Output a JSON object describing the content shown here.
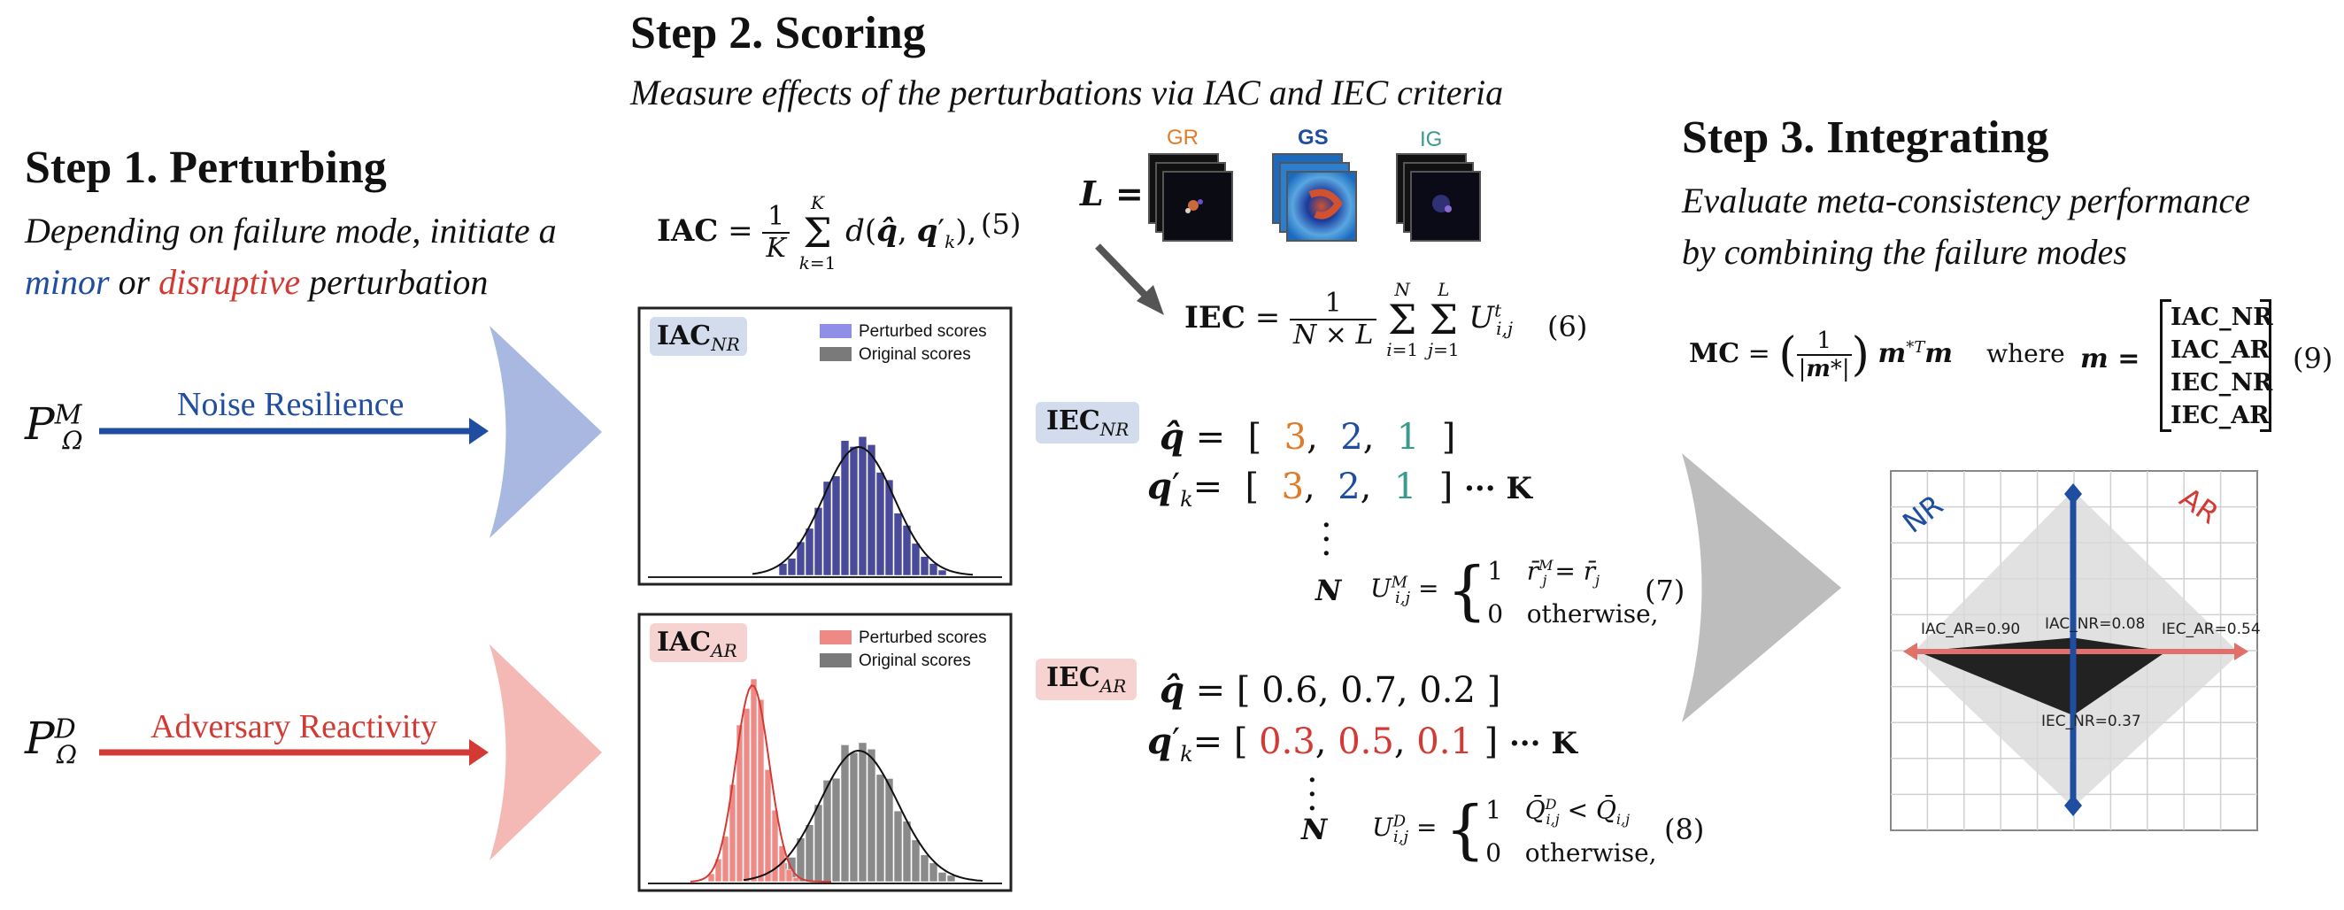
{
  "step1": {
    "title": "Step 1. Perturbing",
    "subtitle_line1": "Depending on failure mode, initiate a",
    "subtitle_minor": "minor",
    "subtitle_or": " or ",
    "subtitle_disruptive": "disruptive",
    "subtitle_end": " perturbation",
    "p_minor": "P",
    "p_minor_sup": "M",
    "p_sub": "Ω",
    "p_disruptive": "P",
    "p_disruptive_sup": "D",
    "noise_label": "Noise Resilience",
    "adversary_label": "Adversary Reactivity"
  },
  "step2": {
    "title": "Step 2. Scoring",
    "subtitle": "Measure effects of the perturbations via IAC and IEC criteria",
    "iac_eq": "IAC = (1/K) Σ_{k=1}^{K} d(q̂, q′_k),",
    "iac_eq_num": "(5)",
    "iec_eq": "IEC = 1/(N × L) Σ_{i=1}^{N} Σ_{j=1}^{L} U^t_{i,j}",
    "iec_eq_num": "(6)",
    "L_label": "L =",
    "explainers": [
      "GR",
      "GS",
      "IG"
    ],
    "hist_nr": {
      "badge": "IAC",
      "badge_sub": "NR",
      "legend_perturbed": "Perturbed scores",
      "legend_original": "Original scores"
    },
    "hist_ar": {
      "badge": "IAC",
      "badge_sub": "AR",
      "legend_perturbed": "Perturbed scores",
      "legend_original": "Original scores"
    },
    "iec_nr": {
      "badge": "IEC",
      "badge_sub": "NR",
      "q_hat": [
        "3",
        "2",
        "1"
      ],
      "q_k": [
        "3",
        "2",
        "1"
      ],
      "dots_k": "··· K",
      "N": "N",
      "u_def": "U^M_{i,j} = { 1  r̄^M_j = r̄_j ; 0  otherwise,",
      "eq_num": "(7)"
    },
    "iec_ar": {
      "badge": "IEC",
      "badge_sub": "AR",
      "q_hat": [
        "0.6",
        "0.7",
        "0.2"
      ],
      "q_k": [
        "0.3",
        "0.5",
        "0.1"
      ],
      "dots_k": "··· K",
      "N": "N",
      "u_def": "U^D_{i,j} = { 1  Q̄^D_{i,j} < Q̄_{i,j} ; 0  otherwise,",
      "eq_num": "(8)"
    }
  },
  "step3": {
    "title": "Step 3. Integrating",
    "subtitle_line1": "Evaluate meta-consistency performance",
    "subtitle_line2": "by combining the failure modes",
    "mc_eq": "MC = (1/|m*|) m*ᵀ m",
    "where": "where",
    "m_label": "m =",
    "m_vector": [
      "IAC_NR",
      "IAC_AR",
      "IEC_NR",
      "IEC_AR"
    ],
    "eq_num": "(9)",
    "plot": {
      "nr_label": "NR",
      "ar_label": "AR",
      "iac_ar_label": "IAC_AR=0.90",
      "iac_nr_label": "IAC_NR=0.08",
      "iec_ar_label": "IEC_AR=0.54",
      "iec_nr_label": "IEC_NR=0.37",
      "values": {
        "iac_ar": 0.9,
        "iac_nr": 0.08,
        "iec_ar": 0.54,
        "iec_nr": 0.37
      }
    }
  },
  "colors": {
    "blue": "#1f4da0",
    "red": "#d43a34",
    "light_blue": "#a9b8e0",
    "light_red": "#f4b8b5",
    "gray_arrow": "#bdbdbd"
  }
}
